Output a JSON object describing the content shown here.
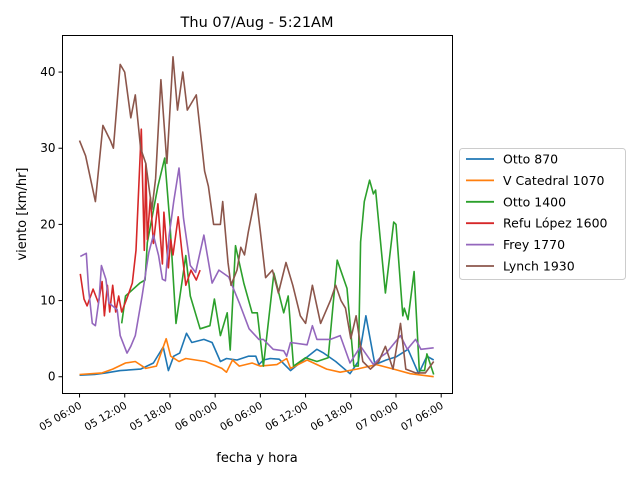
{
  "chart_data": {
    "type": "line",
    "title": "Thu 07/Aug - 5:21AM",
    "xlabel": "fecha y hora",
    "ylabel": "viento [km/hr]",
    "x_units": "hours since 05 06:00",
    "xlim": [
      -2.26,
      49.5
    ],
    "ylim": [
      -2.2,
      44.8
    ],
    "x_ticks": [
      0,
      6,
      12,
      18,
      24,
      30,
      36,
      42,
      48
    ],
    "x_tick_labels": [
      "05 06:00",
      "05 12:00",
      "05 18:00",
      "06 00:00",
      "06 06:00",
      "06 12:00",
      "06 18:00",
      "07 00:00",
      "07 06:00"
    ],
    "y_ticks": [
      0,
      10,
      20,
      30,
      40
    ],
    "y_tick_labels": [
      "0",
      "10",
      "20",
      "30",
      "40"
    ],
    "grid": false,
    "legend_position": "outside-right",
    "series": [
      {
        "name": "Otto 870",
        "color": "#1f77b4",
        "points": [
          [
            0,
            0.2
          ],
          [
            2,
            0.3
          ],
          [
            3.5,
            0.5
          ],
          [
            5.4,
            0.8
          ],
          [
            8.1,
            1
          ],
          [
            9.8,
            1.8
          ],
          [
            11.1,
            3.9
          ],
          [
            11.8,
            0.8
          ],
          [
            12.5,
            2.7
          ],
          [
            13.3,
            3.1
          ],
          [
            14.2,
            5.7
          ],
          [
            14.9,
            4.5
          ],
          [
            16.5,
            4.9
          ],
          [
            17.6,
            4.5
          ],
          [
            18.7,
            2
          ],
          [
            19.5,
            2.4
          ],
          [
            20.9,
            2.2
          ],
          [
            22.4,
            2.7
          ],
          [
            23.4,
            2.7
          ],
          [
            23.8,
            1.6
          ],
          [
            24.4,
            2.2
          ],
          [
            25.3,
            2.4
          ],
          [
            26.5,
            2.3
          ],
          [
            28,
            0.8
          ],
          [
            29.7,
            2.2
          ],
          [
            31.5,
            3.6
          ],
          [
            32.4,
            3.1
          ],
          [
            34,
            2
          ],
          [
            35.9,
            0.4
          ],
          [
            37,
            2
          ],
          [
            38,
            8
          ],
          [
            39.2,
            1.6
          ],
          [
            40.7,
            2.2
          ],
          [
            42,
            2.6
          ],
          [
            43.6,
            3.6
          ],
          [
            45,
            0.4
          ],
          [
            46.1,
            2.7
          ],
          [
            47,
            2.2
          ]
        ]
      },
      {
        "name": "V Catedral 1070",
        "color": "#ff7f0e",
        "points": [
          [
            0,
            0.3
          ],
          [
            3,
            0.5
          ],
          [
            4.4,
            1
          ],
          [
            6.1,
            1.8
          ],
          [
            7.4,
            2
          ],
          [
            8.8,
            1.1
          ],
          [
            10.2,
            1.4
          ],
          [
            11.5,
            5
          ],
          [
            12.1,
            2.7
          ],
          [
            13.2,
            2
          ],
          [
            14.1,
            2.4
          ],
          [
            16.7,
            2
          ],
          [
            18.9,
            1.1
          ],
          [
            19.5,
            0.6
          ],
          [
            20.3,
            2.2
          ],
          [
            21.2,
            1.4
          ],
          [
            22.9,
            1.8
          ],
          [
            24,
            1.4
          ],
          [
            26.2,
            1.6
          ],
          [
            27.5,
            2.4
          ],
          [
            28,
            1.1
          ],
          [
            30.2,
            2.2
          ],
          [
            32.8,
            1
          ],
          [
            34.6,
            0.6
          ],
          [
            36.8,
            1
          ],
          [
            39.4,
            1.6
          ],
          [
            41.7,
            1
          ],
          [
            43.9,
            0.4
          ],
          [
            47,
            0
          ]
        ]
      },
      {
        "name": "Otto 1400",
        "color": "#2ca02c",
        "points": [
          [
            5.6,
            7
          ],
          [
            6.1,
            10.6
          ],
          [
            8,
            12.3
          ],
          [
            8.7,
            12.7
          ],
          [
            9,
            17.6
          ],
          [
            10.4,
            25
          ],
          [
            11.3,
            28.7
          ],
          [
            12,
            20.2
          ],
          [
            12.8,
            7
          ],
          [
            14.1,
            15.9
          ],
          [
            14.7,
            10.6
          ],
          [
            16,
            6.3
          ],
          [
            17.3,
            6.7
          ],
          [
            17.9,
            10.2
          ],
          [
            18.7,
            5.4
          ],
          [
            19.6,
            8.4
          ],
          [
            20,
            3.5
          ],
          [
            20.7,
            17.2
          ],
          [
            21.8,
            12.3
          ],
          [
            22.9,
            8.4
          ],
          [
            23.6,
            8.4
          ],
          [
            24.4,
            1.4
          ],
          [
            25.8,
            13.6
          ],
          [
            27.1,
            8.4
          ],
          [
            27.7,
            10.6
          ],
          [
            28.4,
            1.4
          ],
          [
            30,
            2.5
          ],
          [
            31.5,
            2
          ],
          [
            33,
            2.5
          ],
          [
            34.2,
            15.3
          ],
          [
            35.5,
            11.6
          ],
          [
            36.4,
            1.4
          ],
          [
            37,
            1.4
          ],
          [
            37.3,
            17.7
          ],
          [
            37.8,
            23
          ],
          [
            38.5,
            25.8
          ],
          [
            39,
            24
          ],
          [
            39.3,
            24.5
          ],
          [
            40.6,
            11
          ],
          [
            41.7,
            20.3
          ],
          [
            42,
            20
          ],
          [
            42.9,
            8
          ],
          [
            43.1,
            9
          ],
          [
            43.6,
            7.5
          ],
          [
            44.4,
            13.8
          ],
          [
            45.1,
            0.8
          ],
          [
            45.8,
            0.8
          ],
          [
            46.1,
            3
          ],
          [
            47,
            0.3
          ]
        ]
      },
      {
        "name": "Refu López 1600",
        "color": "#d62728",
        "points": [
          [
            0.1,
            13.5
          ],
          [
            0.6,
            10.2
          ],
          [
            1,
            9.3
          ],
          [
            1.8,
            11.5
          ],
          [
            2.5,
            9.7
          ],
          [
            3,
            12.5
          ],
          [
            3.3,
            8
          ],
          [
            3.7,
            12
          ],
          [
            4,
            8.5
          ],
          [
            4.4,
            12
          ],
          [
            4.8,
            8.5
          ],
          [
            5.2,
            10.6
          ],
          [
            5.6,
            8.5
          ],
          [
            6.4,
            10.6
          ],
          [
            7,
            12.3
          ],
          [
            7.5,
            16.6
          ],
          [
            8.2,
            32.5
          ],
          [
            8.6,
            16.6
          ],
          [
            8.8,
            28
          ],
          [
            9,
            18
          ],
          [
            9.4,
            23.6
          ],
          [
            9.8,
            17.5
          ],
          [
            10.4,
            22.7
          ],
          [
            11,
            14.8
          ],
          [
            11.2,
            21.6
          ],
          [
            11.8,
            14.3
          ],
          [
            12.1,
            18
          ],
          [
            12.4,
            16
          ],
          [
            13.1,
            21
          ],
          [
            13.6,
            16.3
          ],
          [
            14.1,
            12
          ],
          [
            14.8,
            14
          ],
          [
            15.5,
            12.7
          ],
          [
            16,
            14
          ]
        ]
      },
      {
        "name": "Frey 1770",
        "color": "#9467bd",
        "points": [
          [
            0.1,
            15.8
          ],
          [
            0.9,
            16.2
          ],
          [
            1.2,
            11.5
          ],
          [
            1.7,
            7
          ],
          [
            2.1,
            6.7
          ],
          [
            2.6,
            10.2
          ],
          [
            2.9,
            14.6
          ],
          [
            3.5,
            12.8
          ],
          [
            3.9,
            9.7
          ],
          [
            5,
            8.8
          ],
          [
            5.4,
            5.4
          ],
          [
            6.3,
            3.1
          ],
          [
            6.8,
            4
          ],
          [
            7.4,
            5.4
          ],
          [
            8.3,
            10.6
          ],
          [
            9.2,
            16.3
          ],
          [
            9.8,
            18.6
          ],
          [
            10.5,
            15.9
          ],
          [
            11,
            12.8
          ],
          [
            11.4,
            12.6
          ],
          [
            11.9,
            18.6
          ],
          [
            12.5,
            23
          ],
          [
            13.2,
            27.4
          ],
          [
            13.8,
            20.8
          ],
          [
            14.7,
            14.6
          ],
          [
            15.4,
            13.7
          ],
          [
            16.5,
            18.6
          ],
          [
            17.6,
            12.3
          ],
          [
            18.5,
            14
          ],
          [
            19.8,
            13.1
          ],
          [
            21.2,
            9.7
          ],
          [
            22.5,
            6.3
          ],
          [
            23.8,
            4.9
          ],
          [
            24.4,
            4.9
          ],
          [
            25.7,
            3.6
          ],
          [
            27.1,
            3.4
          ],
          [
            27.5,
            2.7
          ],
          [
            28,
            4.5
          ],
          [
            30.2,
            4.2
          ],
          [
            30.9,
            6.7
          ],
          [
            31.5,
            4.9
          ],
          [
            33.3,
            4.9
          ],
          [
            34.6,
            5.4
          ],
          [
            35.9,
            1.8
          ],
          [
            37.3,
            4
          ],
          [
            39,
            1.6
          ],
          [
            40.1,
            2.7
          ],
          [
            40.7,
            3.1
          ],
          [
            42.6,
            5.4
          ],
          [
            43.5,
            3.6
          ],
          [
            44.6,
            4.9
          ],
          [
            45.3,
            3.6
          ],
          [
            47,
            3.8
          ]
        ]
      },
      {
        "name": "Lynch 1930",
        "color": "#8c564b",
        "points": [
          [
            0,
            31
          ],
          [
            0.8,
            29
          ],
          [
            2.1,
            23
          ],
          [
            3.1,
            33
          ],
          [
            4.1,
            31
          ],
          [
            4.5,
            30
          ],
          [
            5.4,
            41
          ],
          [
            6,
            40
          ],
          [
            6.8,
            34
          ],
          [
            7.4,
            37
          ],
          [
            8.1,
            30
          ],
          [
            8.8,
            28
          ],
          [
            9.6,
            22
          ],
          [
            10.1,
            26
          ],
          [
            10.8,
            39
          ],
          [
            11.6,
            28
          ],
          [
            12.4,
            42
          ],
          [
            13,
            35
          ],
          [
            13.7,
            40
          ],
          [
            14.3,
            35
          ],
          [
            15.5,
            37
          ],
          [
            16.6,
            27
          ],
          [
            17.1,
            25
          ],
          [
            17.8,
            20
          ],
          [
            18.7,
            20
          ],
          [
            19,
            23
          ],
          [
            19.7,
            15
          ],
          [
            20.1,
            12
          ],
          [
            20.9,
            14
          ],
          [
            21.4,
            17
          ],
          [
            21.9,
            16
          ],
          [
            22.4,
            19
          ],
          [
            23,
            22
          ],
          [
            23.4,
            24
          ],
          [
            24,
            19
          ],
          [
            24.7,
            13
          ],
          [
            25.6,
            14
          ],
          [
            26.4,
            11
          ],
          [
            27.4,
            15
          ],
          [
            28.3,
            12
          ],
          [
            29.3,
            8
          ],
          [
            30,
            7
          ],
          [
            30.9,
            12
          ],
          [
            32,
            7
          ],
          [
            33.3,
            10
          ],
          [
            34,
            12
          ],
          [
            34.7,
            10
          ],
          [
            35.3,
            9
          ],
          [
            36,
            5
          ],
          [
            36.7,
            8
          ],
          [
            37.6,
            2
          ],
          [
            38.6,
            1
          ],
          [
            39.7,
            2
          ],
          [
            40.6,
            4
          ],
          [
            41.6,
            1
          ],
          [
            42.6,
            7
          ],
          [
            43.3,
            1
          ],
          [
            44.6,
            0.5
          ],
          [
            45.9,
            0.5
          ],
          [
            47,
            2
          ]
        ]
      }
    ]
  }
}
